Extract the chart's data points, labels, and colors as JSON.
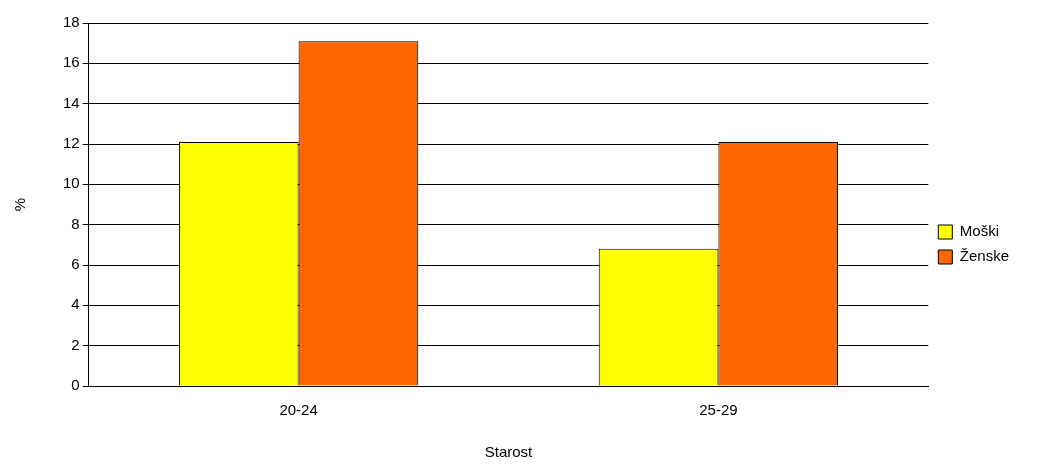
{
  "chart_data": {
    "type": "bar",
    "xlabel": "Starost",
    "ylabel": "%",
    "categories": [
      "20-24",
      "25-29"
    ],
    "series": [
      {
        "name": "Moški",
        "color": "#ffff00",
        "values": [
          12.1,
          6.8
        ]
      },
      {
        "name": "Ženske",
        "color": "#ff6600",
        "values": [
          17.1,
          12.1
        ]
      }
    ],
    "ylim": [
      0,
      18
    ],
    "yticks": [
      0,
      2,
      4,
      6,
      8,
      10,
      12,
      14,
      16,
      18
    ],
    "grid": "y",
    "legend": "right"
  }
}
